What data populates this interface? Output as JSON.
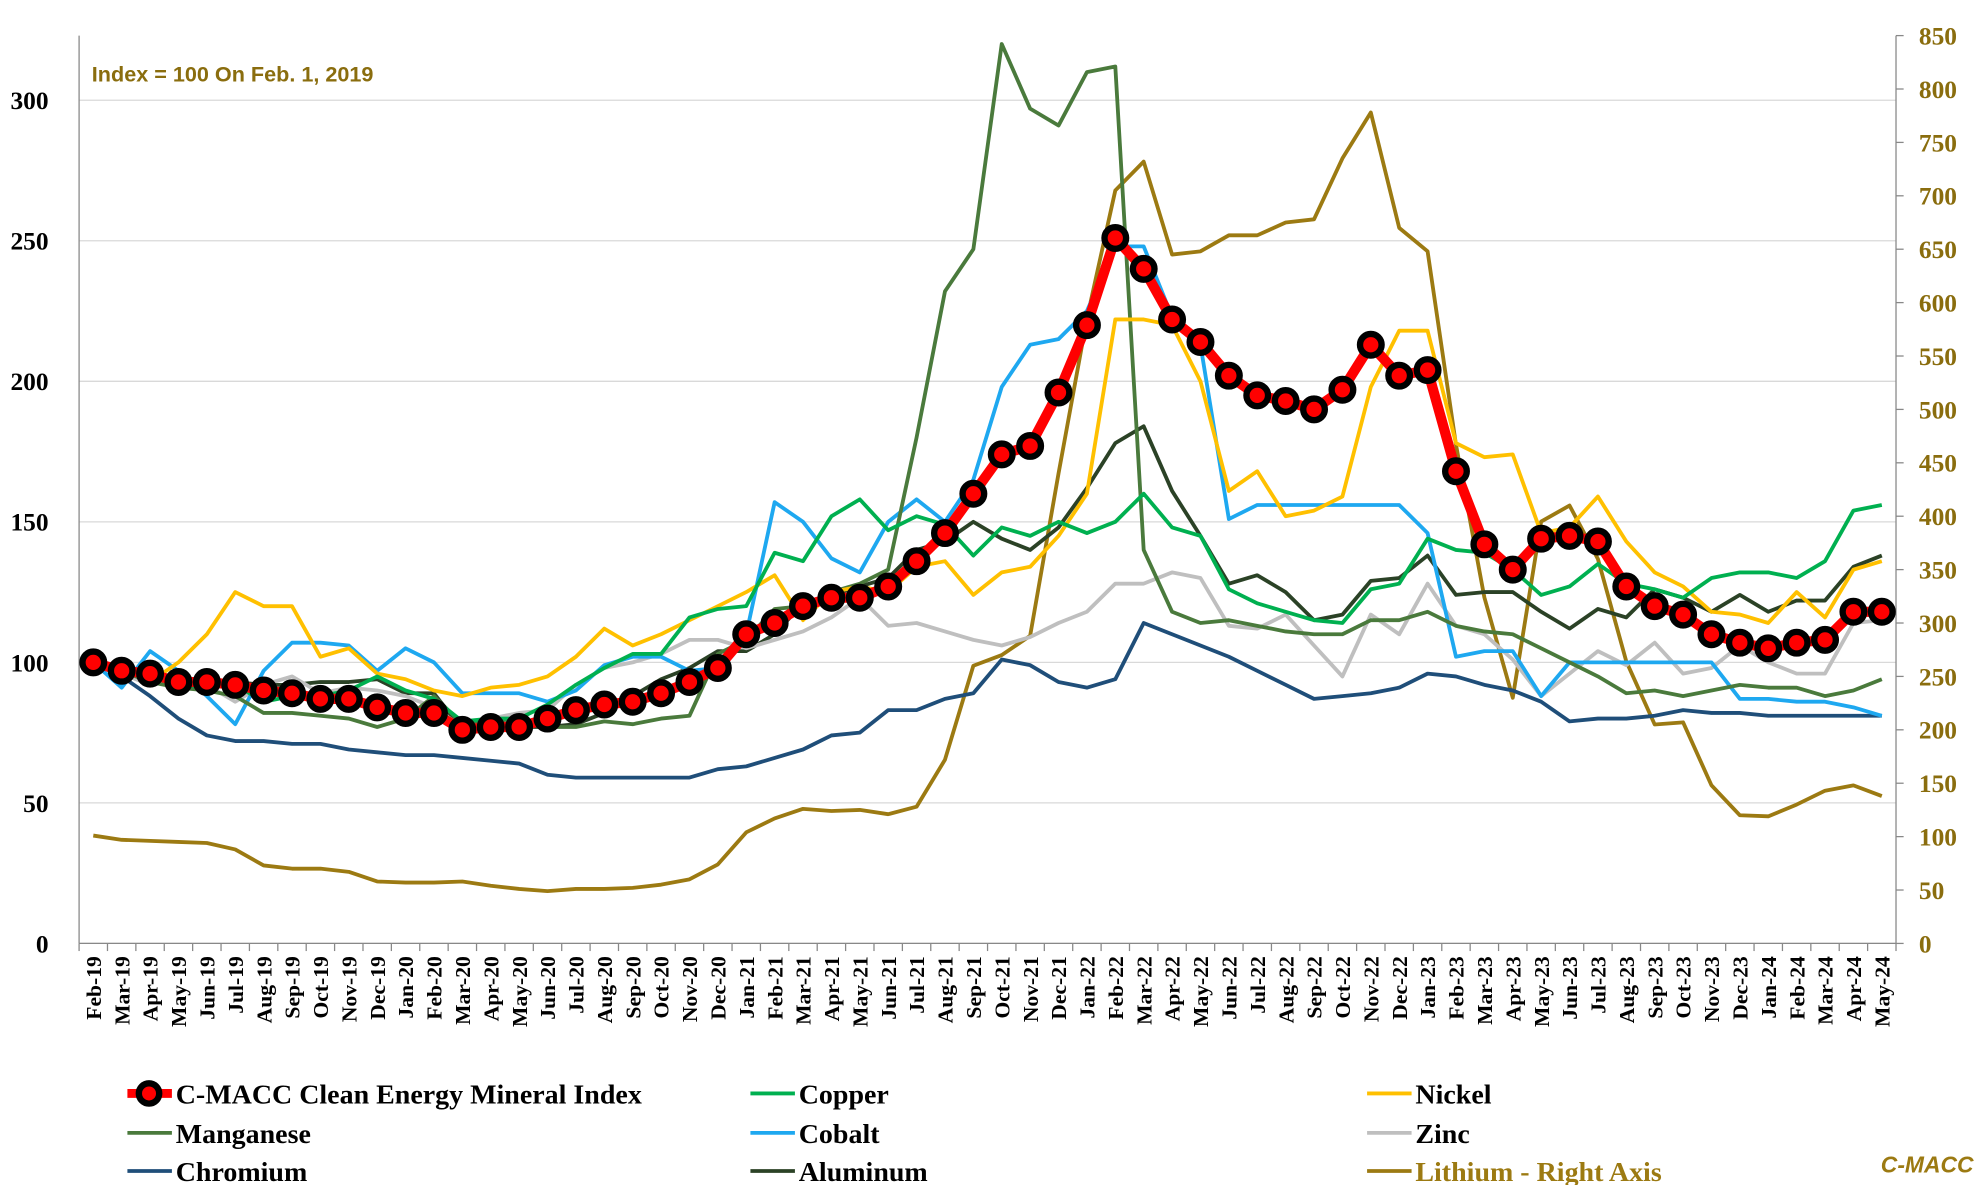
{
  "chart_data": {
    "type": "line",
    "annotation": "Index = 100 On Feb. 1, 2019",
    "source": "C-MACC",
    "categories": [
      "Feb-19",
      "Mar-19",
      "Apr-19",
      "May-19",
      "Jun-19",
      "Jul-19",
      "Aug-19",
      "Sep-19",
      "Oct-19",
      "Nov-19",
      "Dec-19",
      "Jan-20",
      "Feb-20",
      "Mar-20",
      "Apr-20",
      "May-20",
      "Jun-20",
      "Jul-20",
      "Aug-20",
      "Sep-20",
      "Oct-20",
      "Nov-20",
      "Dec-20",
      "Jan-21",
      "Feb-21",
      "Mar-21",
      "Apr-21",
      "May-21",
      "Jun-21",
      "Jul-21",
      "Aug-21",
      "Sep-21",
      "Oct-21",
      "Nov-21",
      "Dec-21",
      "Jan-22",
      "Feb-22",
      "Mar-22",
      "Apr-22",
      "May-22",
      "Jun-22",
      "Jul-22",
      "Aug-22",
      "Sep-22",
      "Oct-22",
      "Nov-22",
      "Dec-22",
      "Jan-23",
      "Feb-23",
      "Mar-23",
      "Apr-23",
      "May-23",
      "Jun-23",
      "Jul-23",
      "Aug-23",
      "Sep-23",
      "Oct-23",
      "Nov-23",
      "Dec-23",
      "Jan-24",
      "Feb-24",
      "Mar-24",
      "Apr-24",
      "May-24"
    ],
    "ylim": [
      0,
      323
    ],
    "yticks": [
      0,
      50,
      100,
      150,
      200,
      250,
      300
    ],
    "y2lim": [
      0,
      850
    ],
    "y2ticks": [
      0,
      50,
      100,
      150,
      200,
      250,
      300,
      350,
      400,
      450,
      500,
      550,
      600,
      650,
      700,
      750,
      800,
      850
    ],
    "grid": true,
    "legend": "bottom",
    "series": [
      {
        "name": "C-MACC Clean Energy Mineral Index",
        "color": "#ff0000",
        "marker": "circle",
        "values": [
          100,
          97,
          96,
          93,
          93,
          92,
          90,
          89,
          87,
          87,
          84,
          82,
          82,
          76,
          77,
          77,
          80,
          83,
          85,
          86,
          89,
          93,
          98,
          110,
          114,
          120,
          123,
          123,
          127,
          136,
          146,
          160,
          174,
          177,
          196,
          220,
          251,
          240,
          222,
          214,
          202,
          195,
          193,
          190,
          197,
          213,
          202,
          204,
          168,
          142,
          133,
          144,
          145,
          143,
          127,
          120,
          117,
          110,
          107,
          105,
          107,
          108,
          118,
          118
        ]
      },
      {
        "name": "Copper",
        "color": "#00b050",
        "values": [
          100,
          95,
          96,
          92,
          91,
          92,
          86,
          88,
          88,
          90,
          95,
          90,
          87,
          79,
          80,
          80,
          85,
          92,
          98,
          103,
          103,
          116,
          119,
          120,
          139,
          136,
          152,
          158,
          147,
          152,
          149,
          138,
          148,
          145,
          150,
          146,
          150,
          160,
          148,
          145,
          126,
          121,
          118,
          115,
          114,
          126,
          128,
          144,
          140,
          139,
          133,
          124,
          127,
          135,
          128,
          126,
          123,
          130,
          132,
          132,
          130,
          136,
          154,
          156
        ]
      },
      {
        "name": "Nickel",
        "color": "#ffc000",
        "values": [
          100,
          98,
          93,
          100,
          110,
          125,
          120,
          120,
          102,
          105,
          96,
          94,
          90,
          88,
          91,
          92,
          95,
          102,
          112,
          106,
          110,
          115,
          120,
          125,
          131,
          115,
          125,
          127,
          125,
          134,
          136,
          124,
          132,
          134,
          145,
          160,
          222,
          222,
          220,
          200,
          161,
          168,
          152,
          154,
          159,
          198,
          218,
          218,
          178,
          173,
          174,
          146,
          148,
          159,
          143,
          132,
          127,
          118,
          117,
          114,
          125,
          116,
          133,
          136
        ]
      },
      {
        "name": "Manganese",
        "color": "#4a7a3c",
        "values": [
          100,
          97,
          93,
          91,
          90,
          88,
          82,
          82,
          81,
          80,
          77,
          80,
          88,
          78,
          79,
          80,
          77,
          77,
          79,
          78,
          80,
          81,
          103,
          108,
          119,
          120,
          125,
          128,
          133,
          180,
          232,
          247,
          320,
          297,
          291,
          310,
          312,
          140,
          118,
          114,
          115,
          113,
          111,
          110,
          110,
          115,
          115,
          118,
          113,
          111,
          110,
          105,
          100,
          95,
          89,
          90,
          88,
          90,
          92,
          91,
          91,
          88,
          90,
          94
        ]
      },
      {
        "name": "Cobalt",
        "color": "#1ea8f0",
        "values": [
          100,
          91,
          104,
          97,
          88,
          78,
          97,
          107,
          107,
          106,
          97,
          105,
          100,
          89,
          89,
          89,
          86,
          90,
          99,
          102,
          102,
          97,
          98,
          110,
          157,
          150,
          137,
          132,
          150,
          158,
          150,
          165,
          198,
          213,
          215,
          225,
          248,
          248,
          223,
          213,
          151,
          156,
          156,
          156,
          156,
          156,
          156,
          146,
          102,
          104,
          104,
          88,
          100,
          100,
          100,
          100,
          100,
          100,
          87,
          87,
          86,
          86,
          84,
          81
        ]
      },
      {
        "name": "Zinc",
        "color": "#bfbfbf",
        "values": [
          100,
          96,
          92,
          96,
          92,
          86,
          92,
          95,
          89,
          91,
          90,
          88,
          84,
          77,
          80,
          82,
          83,
          92,
          98,
          100,
          103,
          108,
          108,
          105,
          108,
          111,
          116,
          123,
          113,
          114,
          111,
          108,
          106,
          109,
          114,
          118,
          128,
          128,
          132,
          130,
          113,
          112,
          117,
          106,
          95,
          117,
          110,
          128,
          113,
          110,
          101,
          88,
          96,
          104,
          99,
          107,
          96,
          98,
          106,
          100,
          96,
          96,
          114,
          115
        ]
      },
      {
        "name": "Chromium",
        "color": "#1f4e79",
        "values": [
          100,
          95,
          88,
          80,
          74,
          72,
          72,
          71,
          71,
          69,
          68,
          67,
          67,
          66,
          65,
          64,
          60,
          59,
          59,
          59,
          59,
          59,
          62,
          63,
          66,
          69,
          74,
          75,
          83,
          83,
          87,
          89,
          101,
          99,
          93,
          91,
          94,
          114,
          110,
          106,
          102,
          97,
          92,
          87,
          88,
          89,
          91,
          96,
          95,
          92,
          90,
          86,
          79,
          80,
          80,
          81,
          83,
          82,
          82,
          81,
          81,
          81,
          81,
          81
        ]
      },
      {
        "name": "Aluminum",
        "color": "#2b4226",
        "values": [
          100,
          96,
          95,
          94,
          93,
          93,
          92,
          92,
          93,
          93,
          94,
          89,
          89,
          76,
          77,
          77,
          77,
          78,
          82,
          88,
          94,
          98,
          104,
          104,
          110,
          121,
          124,
          127,
          130,
          140,
          143,
          150,
          144,
          140,
          148,
          162,
          178,
          184,
          161,
          145,
          128,
          131,
          125,
          115,
          117,
          129,
          130,
          138,
          124,
          125,
          125,
          118,
          112,
          119,
          116,
          126,
          123,
          118,
          124,
          118,
          122,
          122,
          134,
          138
        ]
      },
      {
        "name": "Lithium - Right Axis",
        "color": "#9c7a12",
        "axis": "y2",
        "values": [
          101,
          97,
          96,
          95,
          94,
          88,
          73,
          70,
          70,
          67,
          58,
          57,
          57,
          58,
          54,
          51,
          49,
          51,
          51,
          52,
          55,
          60,
          74,
          104,
          117,
          126,
          124,
          125,
          121,
          128,
          172,
          260,
          270,
          288,
          440,
          585,
          705,
          732,
          645,
          648,
          663,
          663,
          675,
          678,
          735,
          778,
          670,
          648,
          467,
          324,
          230,
          395,
          410,
          360,
          264,
          205,
          207,
          148,
          120,
          119,
          130,
          143,
          148,
          138
        ]
      }
    ]
  }
}
